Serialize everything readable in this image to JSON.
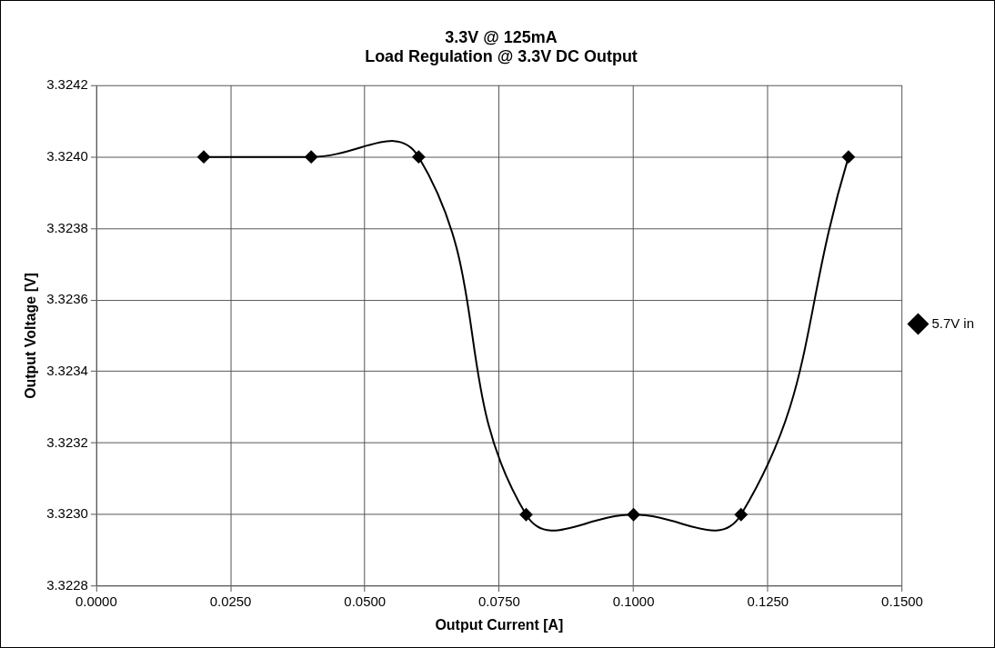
{
  "chart_data": {
    "type": "line",
    "title": [
      "3.3V @ 125mA",
      "Load Regulation @ 3.3V DC Output"
    ],
    "xlabel": "Output Current [A]",
    "ylabel": "Output Voltage [V]",
    "x": [
      0.02,
      0.04,
      0.06,
      0.08,
      0.1,
      0.12,
      0.14
    ],
    "series": [
      {
        "name": "5.7V in",
        "color": "#000000",
        "values": [
          3.324,
          3.324,
          3.324,
          3.323,
          3.323,
          3.323,
          3.324
        ]
      }
    ],
    "xlim": [
      0,
      0.15
    ],
    "xticks": [
      {
        "value": 0,
        "label": "0.0000"
      },
      {
        "value": 0.025,
        "label": "0.0250"
      },
      {
        "value": 0.05,
        "label": "0.0500"
      },
      {
        "value": 0.075,
        "label": "0.0750"
      },
      {
        "value": 0.1,
        "label": "0.1000"
      },
      {
        "value": 0.125,
        "label": "0.1250"
      },
      {
        "value": 0.15,
        "label": "0.1500"
      }
    ],
    "ylim": [
      3.3228,
      3.3242
    ],
    "yticks": [
      {
        "value": 3.3228,
        "label": "3.3228"
      },
      {
        "value": 3.323,
        "label": "3.3230"
      },
      {
        "value": 3.3232,
        "label": "3.3232"
      },
      {
        "value": 3.3234,
        "label": "3.3234"
      },
      {
        "value": 3.3236,
        "label": "3.3236"
      },
      {
        "value": 3.3238,
        "label": "3.3238"
      },
      {
        "value": 3.324,
        "label": "3.3240"
      },
      {
        "value": 3.3242,
        "label": "3.3242"
      }
    ],
    "grid": true,
    "legend": "right",
    "marker": "diamond",
    "line_style": "solid"
  }
}
